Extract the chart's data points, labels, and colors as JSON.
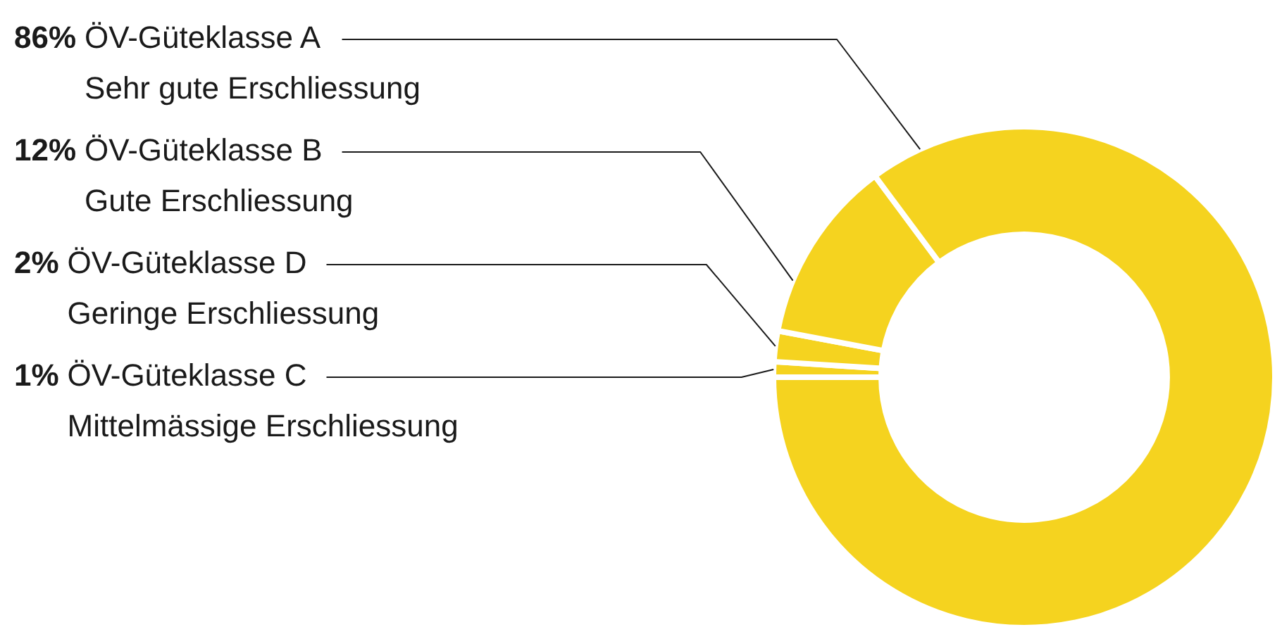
{
  "chart_data": {
    "type": "donut",
    "categories": [
      "ÖV-Güteklasse A\nSehr gute Erschliessung",
      "ÖV-Güteklasse B\nGute Erschliessung",
      "ÖV-Güteklasse D\nGeringe Erschliessung",
      "ÖV-Güteklasse C\nMittelmässige Erschliessung"
    ],
    "values": [
      86,
      12,
      2,
      1
    ],
    "value_labels": [
      "86%",
      "12%",
      "2%",
      "1%"
    ],
    "colors": [
      "#f5d31f",
      "#f5d31f",
      "#f5d31f",
      "#f5d31f"
    ],
    "legend": false
  }
}
